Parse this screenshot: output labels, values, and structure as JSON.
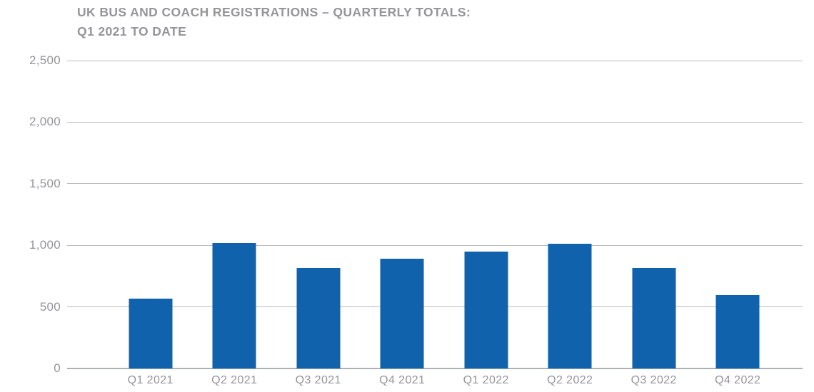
{
  "page": {
    "background": "#ffffff"
  },
  "chart_data": {
    "type": "bar",
    "title_line1": "UK BUS AND COACH REGISTRATIONS – QUARTERLY TOTALS:",
    "title_line2": "Q1 2021 TO DATE",
    "categories": [
      "Q1 2021",
      "Q2 2021",
      "Q3 2021",
      "Q4 2021",
      "Q1 2022",
      "Q2 2022",
      "Q3 2022",
      "Q4 2022"
    ],
    "values": [
      565,
      1020,
      815,
      890,
      950,
      1010,
      815,
      595
    ],
    "xlabel": "",
    "ylabel": "",
    "ylim": [
      0,
      2500
    ],
    "ytick_interval": 500,
    "ytick_labels_top_to_bottom": [
      "2,500",
      "2,000",
      "1,500",
      "1,000",
      "500",
      "0"
    ],
    "grid": true,
    "legend": "none",
    "colors": {
      "bar": "#1062ac",
      "gridline": "#b9bbbd",
      "axis_line": "#aeb0b2",
      "text": "#939598"
    }
  }
}
